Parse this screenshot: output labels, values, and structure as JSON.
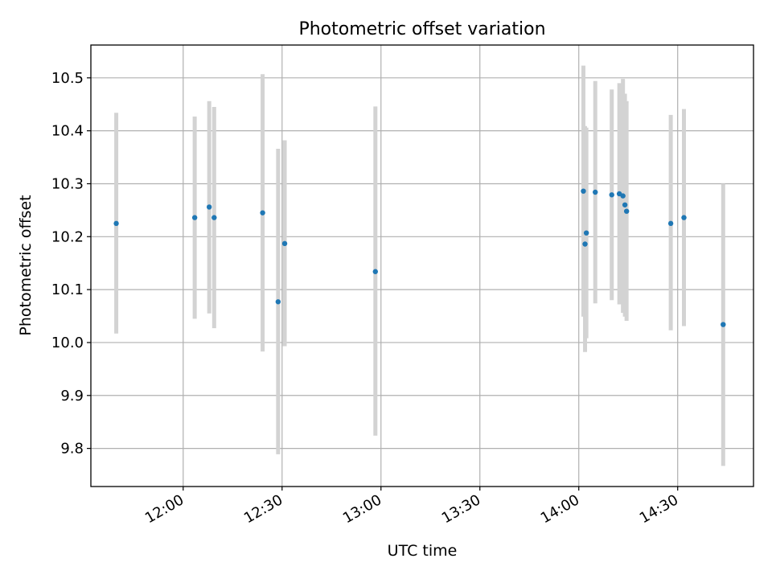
{
  "chart_data": {
    "type": "scatter",
    "title": "Photometric offset variation",
    "xlabel": "UTC time",
    "ylabel": "Photometric offset",
    "x_axis_type": "time",
    "xlim": [
      "11:32",
      "14:53"
    ],
    "ylim": [
      9.728,
      10.562
    ],
    "x_ticks": [
      "12:00",
      "12:30",
      "13:00",
      "13:30",
      "14:00",
      "14:30"
    ],
    "y_ticks": [
      "9.8",
      "9.9",
      "10.0",
      "10.1",
      "10.2",
      "10.3",
      "10.4",
      "10.5"
    ],
    "grid": true,
    "legend": "none",
    "colors": {
      "marker": "#1f77b4",
      "errorbar": "#d3d3d3",
      "grid": "#b0b0b0"
    },
    "series": [
      {
        "points": [
          {
            "x": "11:39.7",
            "y": 10.225,
            "yerr_low": 10.017,
            "yerr_high": 10.434
          },
          {
            "x": "12:03.5",
            "y": 10.236,
            "yerr_low": 10.045,
            "yerr_high": 10.427
          },
          {
            "x": "12:07.9",
            "y": 10.256,
            "yerr_low": 10.055,
            "yerr_high": 10.456
          },
          {
            "x": "12:09.4",
            "y": 10.236,
            "yerr_low": 10.027,
            "yerr_high": 10.445
          },
          {
            "x": "12:24.1",
            "y": 10.245,
            "yerr_low": 9.983,
            "yerr_high": 10.507
          },
          {
            "x": "12:28.8",
            "y": 10.077,
            "yerr_low": 9.789,
            "yerr_high": 10.366
          },
          {
            "x": "12:30.8",
            "y": 10.187,
            "yerr_low": 9.993,
            "yerr_high": 10.382
          },
          {
            "x": "12:58.3",
            "y": 10.134,
            "yerr_low": 9.824,
            "yerr_high": 10.446
          },
          {
            "x": "14:01.4",
            "y": 10.286,
            "yerr_low": 10.049,
            "yerr_high": 10.523
          },
          {
            "x": "14:01.9",
            "y": 10.186,
            "yerr_low": 9.982,
            "yerr_high": 10.409
          },
          {
            "x": "14:02.3",
            "y": 10.207,
            "yerr_low": 10.008,
            "yerr_high": 10.406
          },
          {
            "x": "14:05.0",
            "y": 10.284,
            "yerr_low": 10.074,
            "yerr_high": 10.494
          },
          {
            "x": "14:10.0",
            "y": 10.279,
            "yerr_low": 10.08,
            "yerr_high": 10.478
          },
          {
            "x": "14:12.3",
            "y": 10.281,
            "yerr_low": 10.072,
            "yerr_high": 10.49
          },
          {
            "x": "14:13.4",
            "y": 10.277,
            "yerr_low": 10.056,
            "yerr_high": 10.498
          },
          {
            "x": "14:14.0",
            "y": 10.26,
            "yerr_low": 10.049,
            "yerr_high": 10.47
          },
          {
            "x": "14:14.5",
            "y": 10.248,
            "yerr_low": 10.041,
            "yerr_high": 10.456
          },
          {
            "x": "14:27.9",
            "y": 10.225,
            "yerr_low": 10.023,
            "yerr_high": 10.43
          },
          {
            "x": "14:31.9",
            "y": 10.236,
            "yerr_low": 10.031,
            "yerr_high": 10.441
          },
          {
            "x": "14:43.8",
            "y": 10.034,
            "yerr_low": 9.767,
            "yerr_high": 10.3
          }
        ]
      }
    ]
  }
}
